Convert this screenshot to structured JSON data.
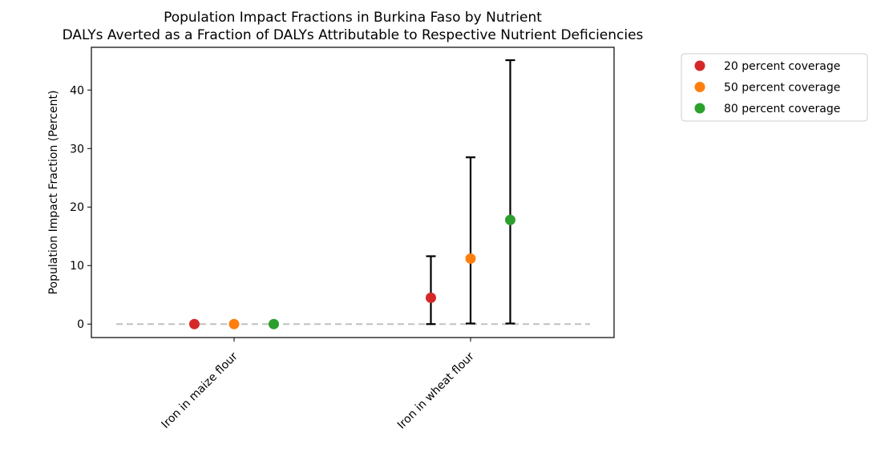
{
  "chart_data": {
    "type": "scatter",
    "title": "Population Impact Fractions in Burkina Faso by Nutrient",
    "subtitle": "DALYs Averted as a Fraction of DALYs Attributable to Respective Nutrient Deficiencies",
    "xlabel": "",
    "ylabel": "Population Impact Fraction (Percent)",
    "categories": [
      "Iron in maize flour",
      "Iron in wheat flour"
    ],
    "ylim": [
      -2.3,
      47.3
    ],
    "yticks": [
      0,
      10,
      20,
      30,
      40
    ],
    "reference_line": 0,
    "grid": false,
    "legend_position": "outside-top-right",
    "series": [
      {
        "name": "20 percent coverage",
        "color": "#d62728",
        "values": [
          0,
          4.5
        ],
        "lower": [
          0,
          0
        ],
        "upper": [
          0,
          11.6
        ]
      },
      {
        "name": "50 percent coverage",
        "color": "#ff7f0e",
        "values": [
          0,
          11.2
        ],
        "lower": [
          0,
          0.1
        ],
        "upper": [
          0,
          28.5
        ]
      },
      {
        "name": "80 percent coverage",
        "color": "#2ca02c",
        "values": [
          0,
          17.8
        ],
        "lower": [
          0,
          0.1
        ],
        "upper": [
          0,
          45.1
        ]
      }
    ]
  }
}
